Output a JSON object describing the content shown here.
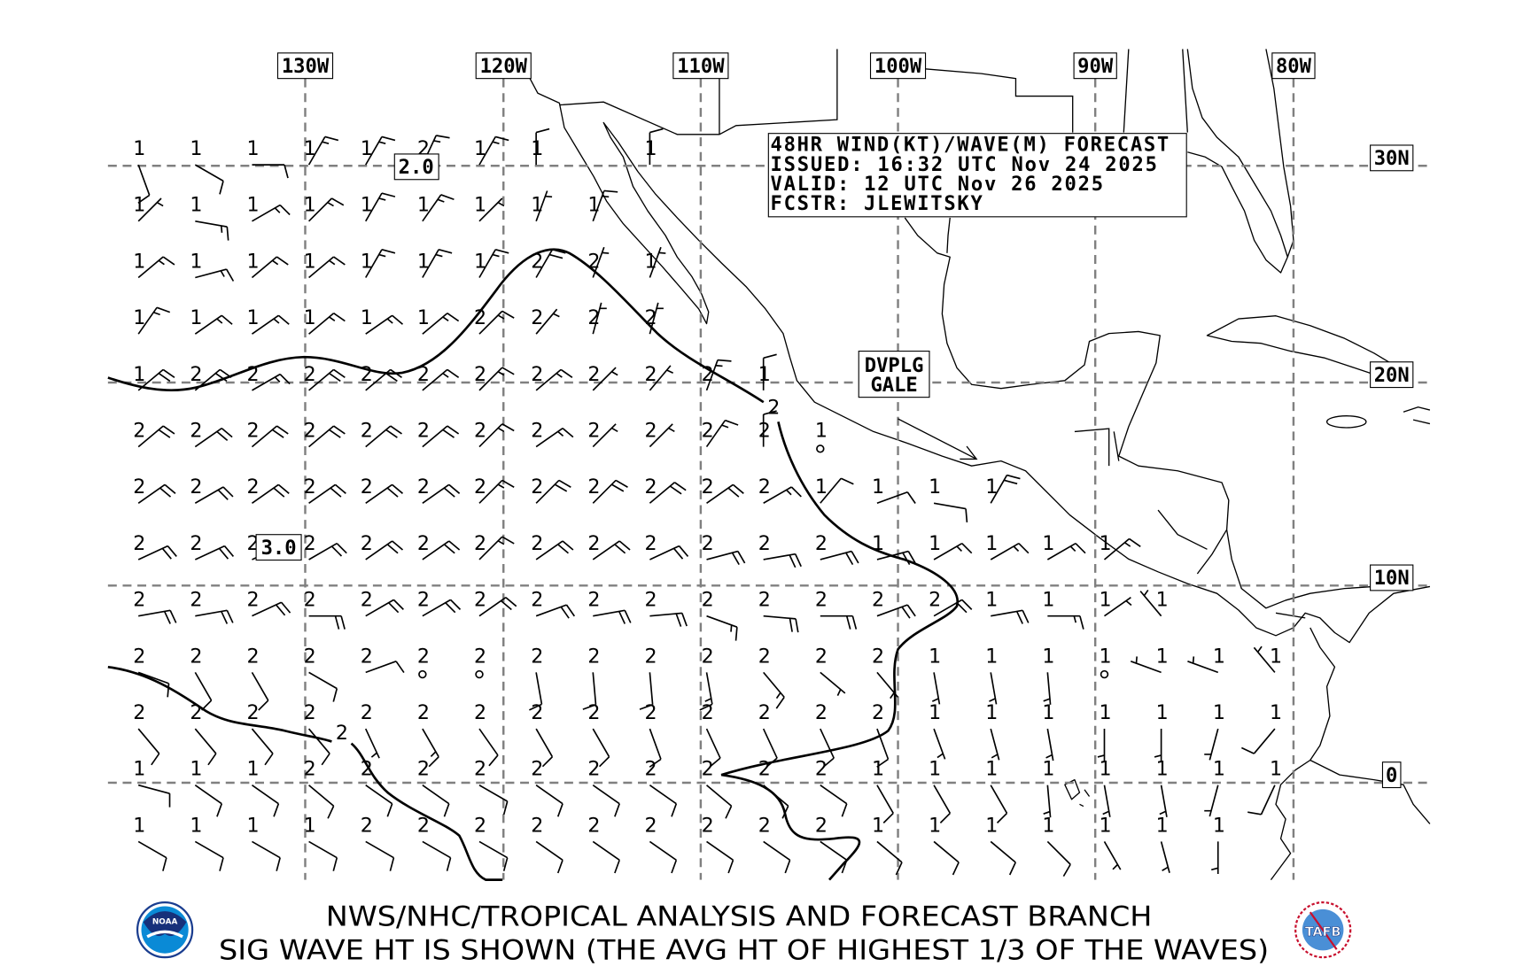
{
  "map": {
    "lon_labels": [
      "130W",
      "120W",
      "110W",
      "100W",
      "90W",
      "80W"
    ],
    "lat_labels": [
      "30N",
      "20N",
      "10N",
      "0"
    ]
  },
  "info_box": {
    "line1": "48HR WIND(KT)/WAVE(M) FORECAST",
    "line2": "ISSUED: 16:32 UTC Nov 24 2025",
    "line3": "VALID: 12 UTC Nov 26 2025",
    "line4": "FCSTR: JLEWITSKY"
  },
  "annotations": {
    "max_wave_north": "2.0",
    "max_wave_south": "3.0",
    "warning_line1": "DVPLG",
    "warning_line2": "GALE",
    "contour_label_north": "2",
    "contour_label_south": "2"
  },
  "footer": {
    "line1": "NWS/NHC/TROPICAL ANALYSIS AND FORECAST BRANCH",
    "line2": "SIG WAVE HT IS SHOWN (THE AVG HT OF HIGHEST 1/3 OF THE WAVES)"
  },
  "logos": {
    "left": "NOAA",
    "right": "TAFB"
  },
  "colors": {
    "grid": "#808080",
    "lines": "#000000",
    "background": "#ffffff"
  },
  "station_grid": {
    "cell_format": "[wave height m, wind direction deg, wind speed kt (0 = calm)]",
    "rows": [
      [
        [
          1,
          160,
          10
        ],
        [
          1,
          120,
          10
        ],
        [
          1,
          90,
          10
        ],
        [
          1,
          30,
          15
        ],
        [
          1,
          30,
          15
        ],
        [
          2,
          25,
          15
        ],
        [
          1,
          30,
          15
        ],
        [
          1,
          0,
          10
        ],
        null,
        [
          1,
          0,
          10
        ]
      ],
      [
        [
          1,
          45,
          5
        ],
        [
          1,
          100,
          15
        ],
        [
          1,
          60,
          15
        ],
        [
          1,
          45,
          15
        ],
        [
          1,
          30,
          15
        ],
        [
          1,
          35,
          15
        ],
        [
          1,
          45,
          5
        ],
        [
          1,
          20,
          5
        ],
        [
          1,
          20,
          15
        ]
      ],
      [
        [
          1,
          50,
          15
        ],
        [
          1,
          75,
          15
        ],
        [
          1,
          50,
          15
        ],
        [
          1,
          50,
          15
        ],
        [
          1,
          30,
          15
        ],
        [
          1,
          30,
          15
        ],
        [
          1,
          30,
          15
        ],
        [
          2,
          30,
          20
        ],
        [
          2,
          20,
          5
        ],
        [
          1,
          20,
          5
        ]
      ],
      [
        [
          1,
          35,
          15
        ],
        [
          1,
          55,
          15
        ],
        [
          1,
          55,
          15
        ],
        [
          1,
          50,
          15
        ],
        [
          1,
          55,
          15
        ],
        [
          1,
          50,
          15
        ],
        [
          2,
          45,
          15
        ],
        [
          2,
          40,
          5
        ],
        [
          2,
          15,
          5
        ],
        [
          2,
          15,
          5
        ]
      ],
      [
        [
          1,
          50,
          20
        ],
        [
          2,
          50,
          20
        ],
        [
          2,
          60,
          15
        ],
        [
          2,
          50,
          20
        ],
        [
          2,
          50,
          20
        ],
        [
          2,
          50,
          15
        ],
        [
          2,
          45,
          15
        ],
        [
          2,
          50,
          15
        ],
        [
          2,
          45,
          5
        ],
        [
          2,
          40,
          5
        ],
        [
          2,
          20,
          15
        ],
        [
          1,
          0,
          10
        ]
      ],
      [
        [
          2,
          50,
          20
        ],
        [
          2,
          55,
          20
        ],
        [
          2,
          50,
          20
        ],
        [
          2,
          50,
          20
        ],
        [
          2,
          50,
          20
        ],
        [
          2,
          50,
          20
        ],
        [
          2,
          45,
          15
        ],
        [
          2,
          55,
          15
        ],
        [
          2,
          45,
          5
        ],
        [
          2,
          45,
          5
        ],
        [
          2,
          35,
          15
        ],
        [
          2,
          0,
          10
        ],
        [
          1,
          0,
          0
        ]
      ],
      [
        [
          2,
          55,
          20
        ],
        [
          2,
          60,
          20
        ],
        [
          2,
          55,
          20
        ],
        [
          2,
          55,
          20
        ],
        [
          2,
          55,
          20
        ],
        [
          2,
          55,
          20
        ],
        [
          2,
          45,
          15
        ],
        [
          2,
          45,
          20
        ],
        [
          2,
          45,
          20
        ],
        [
          2,
          50,
          20
        ],
        [
          2,
          55,
          20
        ],
        [
          2,
          60,
          15
        ],
        [
          1,
          40,
          10
        ],
        [
          1,
          70,
          10
        ],
        [
          1,
          100,
          10
        ],
        [
          1,
          30,
          20
        ]
      ],
      [
        [
          2,
          65,
          20
        ],
        [
          2,
          65,
          20
        ],
        [
          2,
          65,
          20
        ],
        [
          2,
          60,
          20
        ],
        [
          2,
          55,
          20
        ],
        [
          2,
          55,
          20
        ],
        [
          2,
          45,
          15
        ],
        [
          2,
          55,
          20
        ],
        [
          2,
          55,
          20
        ],
        [
          2,
          65,
          20
        ],
        [
          2,
          75,
          20
        ],
        [
          2,
          80,
          20
        ],
        [
          2,
          75,
          20
        ],
        [
          1,
          75,
          20
        ],
        [
          1,
          60,
          15
        ],
        [
          1,
          60,
          15
        ],
        [
          1,
          60,
          15
        ],
        [
          1,
          50,
          15
        ]
      ],
      [
        [
          2,
          80,
          20
        ],
        [
          2,
          80,
          20
        ],
        [
          2,
          65,
          20
        ],
        [
          2,
          90,
          20
        ],
        [
          2,
          60,
          20
        ],
        [
          2,
          60,
          20
        ],
        [
          2,
          55,
          20
        ],
        [
          2,
          70,
          20
        ],
        [
          2,
          80,
          20
        ],
        [
          2,
          85,
          20
        ],
        [
          2,
          110,
          15
        ],
        [
          2,
          95,
          20
        ],
        [
          2,
          90,
          20
        ],
        [
          2,
          70,
          20
        ],
        [
          2,
          60,
          20
        ],
        [
          1,
          80,
          20
        ],
        [
          1,
          90,
          15
        ],
        [
          1,
          55,
          5
        ],
        [
          1,
          320,
          5
        ]
      ],
      [
        [
          2,
          110,
          10
        ],
        [
          2,
          150,
          10
        ],
        [
          2,
          150,
          10
        ],
        [
          2,
          120,
          10
        ],
        [
          2,
          70,
          10
        ],
        [
          2,
          0,
          0
        ],
        [
          2,
          0,
          0
        ],
        [
          2,
          170,
          10
        ],
        [
          2,
          175,
          10
        ],
        [
          2,
          175,
          10
        ],
        [
          2,
          170,
          15
        ],
        [
          2,
          140,
          15
        ],
        [
          2,
          130,
          5
        ],
        [
          2,
          140,
          5
        ],
        [
          1,
          170,
          5
        ],
        [
          1,
          170,
          5
        ],
        [
          1,
          175,
          5
        ],
        [
          1,
          0,
          0
        ],
        [
          1,
          290,
          5
        ],
        [
          1,
          290,
          5
        ],
        [
          1,
          320,
          5
        ]
      ],
      [
        [
          2,
          140,
          10
        ],
        [
          2,
          140,
          10
        ],
        [
          2,
          140,
          10
        ],
        [
          2,
          140,
          10
        ],
        [
          2,
          155,
          5
        ],
        [
          2,
          150,
          15
        ],
        [
          2,
          145,
          10
        ],
        [
          2,
          150,
          10
        ],
        [
          2,
          150,
          10
        ],
        [
          2,
          160,
          10
        ],
        [
          2,
          155,
          10
        ],
        [
          2,
          155,
          10
        ],
        [
          2,
          155,
          10
        ],
        [
          2,
          160,
          10
        ],
        [
          1,
          160,
          5
        ],
        [
          1,
          165,
          5
        ],
        [
          1,
          170,
          5
        ],
        [
          1,
          180,
          5
        ],
        [
          1,
          180,
          5
        ],
        [
          1,
          195,
          5
        ],
        [
          1,
          220,
          10
        ]
      ],
      [
        [
          1,
          105,
          10
        ],
        [
          1,
          125,
          10
        ],
        [
          1,
          125,
          10
        ],
        [
          2,
          130,
          10
        ],
        [
          2,
          125,
          10
        ],
        [
          2,
          125,
          10
        ],
        [
          2,
          120,
          10
        ],
        [
          2,
          125,
          10
        ],
        [
          2,
          125,
          10
        ],
        [
          2,
          125,
          10
        ],
        [
          2,
          130,
          10
        ],
        [
          2,
          130,
          10
        ],
        [
          2,
          125,
          10
        ],
        [
          1,
          150,
          10
        ],
        [
          1,
          150,
          10
        ],
        [
          1,
          150,
          10
        ],
        [
          1,
          175,
          5
        ],
        [
          1,
          170,
          5
        ],
        [
          1,
          170,
          5
        ],
        [
          1,
          195,
          5
        ],
        [
          1,
          205,
          10
        ]
      ],
      [
        [
          1,
          120,
          10
        ],
        [
          1,
          120,
          10
        ],
        [
          1,
          120,
          10
        ],
        [
          1,
          120,
          10
        ],
        [
          2,
          120,
          10
        ],
        [
          2,
          120,
          10
        ],
        [
          2,
          120,
          10
        ],
        [
          2,
          125,
          10
        ],
        [
          2,
          125,
          10
        ],
        [
          2,
          125,
          10
        ],
        [
          2,
          125,
          10
        ],
        [
          2,
          125,
          10
        ],
        [
          2,
          125,
          10
        ],
        [
          1,
          130,
          10
        ],
        [
          1,
          130,
          10
        ],
        [
          1,
          130,
          10
        ],
        [
          1,
          135,
          10
        ],
        [
          1,
          150,
          5
        ],
        [
          1,
          165,
          5
        ],
        [
          1,
          180,
          5
        ]
      ]
    ]
  }
}
